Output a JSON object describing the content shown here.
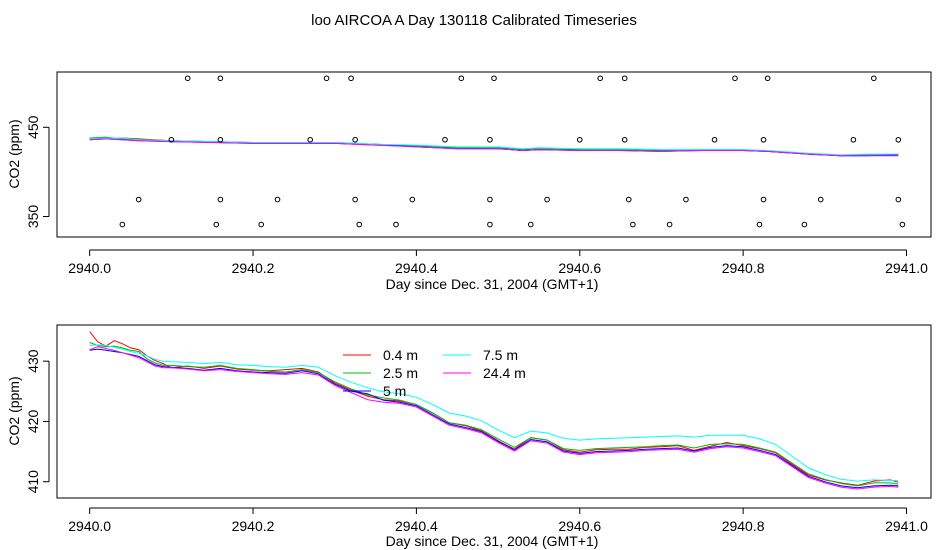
{
  "title": "loo AIRCOA A  Day 130118  Calibrated Timeseries",
  "chart_data": [
    {
      "type": "scatter",
      "xlabel": "Day since Dec. 31, 2004 (GMT+1)",
      "ylabel": "CO2 (ppm)",
      "xlim": [
        2939.96,
        2941.03
      ],
      "ylim": [
        327,
        512
      ],
      "xticks": [
        "2940.0",
        "2940.2",
        "2940.4",
        "2940.6",
        "2940.8",
        "2941.0"
      ],
      "xtick_values": [
        2940.0,
        2940.2,
        2940.4,
        2940.6,
        2940.8,
        2941.0
      ],
      "yticks": [
        "350",
        "450"
      ],
      "ytick_values": [
        350,
        450
      ],
      "grid": false,
      "line_colors": [
        "#ff0000",
        "#00bb00",
        "#0000ff",
        "#00ffff",
        "#ff00ff"
      ],
      "series": [
        {
          "values": [
            [
              2940.0,
              437
            ],
            [
              2940.02,
              438
            ],
            [
              2940.04,
              438
            ],
            [
              2940.06,
              437
            ],
            [
              2940.1,
              435
            ],
            [
              2940.2,
              433
            ],
            [
              2940.3,
              432
            ],
            [
              2940.35,
              430
            ],
            [
              2940.4,
              429
            ],
            [
              2940.45,
              427
            ],
            [
              2940.5,
              426
            ],
            [
              2940.53,
              424
            ],
            [
              2940.55,
              425
            ],
            [
              2940.6,
              425
            ],
            [
              2940.65,
              424
            ],
            [
              2940.7,
              424
            ],
            [
              2940.75,
              424
            ],
            [
              2940.8,
              424
            ],
            [
              2940.83,
              423
            ],
            [
              2940.88,
              420
            ],
            [
              2940.92,
              418
            ],
            [
              2940.95,
              419
            ],
            [
              2940.99,
              419
            ]
          ]
        },
        {
          "values": [
            [
              2940.0,
              438
            ],
            [
              2940.02,
              439
            ],
            [
              2940.04,
              437
            ],
            [
              2940.06,
              436
            ],
            [
              2940.1,
              435
            ],
            [
              2940.2,
              433
            ],
            [
              2940.3,
              433
            ],
            [
              2940.35,
              431
            ],
            [
              2940.4,
              429
            ],
            [
              2940.45,
              427
            ],
            [
              2940.5,
              427
            ],
            [
              2940.53,
              425
            ],
            [
              2940.55,
              426
            ],
            [
              2940.6,
              425
            ],
            [
              2940.65,
              425
            ],
            [
              2940.7,
              424
            ],
            [
              2940.75,
              425
            ],
            [
              2940.8,
              425
            ],
            [
              2940.83,
              423
            ],
            [
              2940.88,
              420
            ],
            [
              2940.92,
              418
            ],
            [
              2940.95,
              419
            ],
            [
              2940.99,
              419
            ]
          ]
        },
        {
          "values": [
            [
              2940.0,
              436
            ],
            [
              2940.02,
              437
            ],
            [
              2940.04,
              436
            ],
            [
              2940.06,
              435
            ],
            [
              2940.1,
              434
            ],
            [
              2940.2,
              432
            ],
            [
              2940.3,
              432
            ],
            [
              2940.35,
              431
            ],
            [
              2940.4,
              428
            ],
            [
              2940.45,
              426
            ],
            [
              2940.5,
              426
            ],
            [
              2940.53,
              424
            ],
            [
              2940.55,
              425
            ],
            [
              2940.6,
              424
            ],
            [
              2940.65,
              424
            ],
            [
              2940.7,
              423
            ],
            [
              2940.75,
              424
            ],
            [
              2940.8,
              424
            ],
            [
              2940.83,
              423
            ],
            [
              2940.88,
              420
            ],
            [
              2940.92,
              418
            ],
            [
              2940.95,
              418
            ],
            [
              2940.99,
              419
            ]
          ]
        },
        {
          "values": [
            [
              2940.0,
              437
            ],
            [
              2940.02,
              438
            ],
            [
              2940.04,
              438
            ],
            [
              2940.06,
              436
            ],
            [
              2940.1,
              435
            ],
            [
              2940.2,
              433
            ],
            [
              2940.3,
              433
            ],
            [
              2940.35,
              431
            ],
            [
              2940.4,
              430
            ],
            [
              2940.45,
              428
            ],
            [
              2940.5,
              428
            ],
            [
              2940.53,
              426
            ],
            [
              2940.55,
              427
            ],
            [
              2940.6,
              426
            ],
            [
              2940.65,
              426
            ],
            [
              2940.7,
              425
            ],
            [
              2940.75,
              425
            ],
            [
              2940.8,
              425
            ],
            [
              2940.83,
              424
            ],
            [
              2940.88,
              421
            ],
            [
              2940.92,
              419
            ],
            [
              2940.95,
              420
            ],
            [
              2940.99,
              420
            ]
          ]
        },
        {
          "values": [
            [
              2940.0,
              436
            ],
            [
              2940.02,
              437
            ],
            [
              2940.04,
              436
            ],
            [
              2940.06,
              435
            ],
            [
              2940.1,
              434
            ],
            [
              2940.2,
              432
            ],
            [
              2940.3,
              432
            ],
            [
              2940.35,
              430
            ],
            [
              2940.4,
              428
            ],
            [
              2940.45,
              426
            ],
            [
              2940.5,
              426
            ],
            [
              2940.53,
              424
            ],
            [
              2940.55,
              425
            ],
            [
              2940.6,
              424
            ],
            [
              2940.65,
              424
            ],
            [
              2940.7,
              423
            ],
            [
              2940.75,
              424
            ],
            [
              2940.8,
              424
            ],
            [
              2940.83,
              423
            ],
            [
              2940.88,
              420
            ],
            [
              2940.92,
              418
            ],
            [
              2940.95,
              418
            ],
            [
              2940.99,
              418
            ]
          ]
        }
      ],
      "points": [
        [
          2940.12,
          505
        ],
        [
          2940.16,
          505
        ],
        [
          2940.29,
          505
        ],
        [
          2940.32,
          505
        ],
        [
          2940.455,
          505
        ],
        [
          2940.495,
          505
        ],
        [
          2940.625,
          505
        ],
        [
          2940.655,
          505
        ],
        [
          2940.79,
          505
        ],
        [
          2940.83,
          505
        ],
        [
          2940.96,
          505
        ],
        [
          2940.1,
          436
        ],
        [
          2940.16,
          436
        ],
        [
          2940.27,
          436
        ],
        [
          2940.325,
          436
        ],
        [
          2940.435,
          436
        ],
        [
          2940.49,
          436
        ],
        [
          2940.6,
          436
        ],
        [
          2940.655,
          436
        ],
        [
          2940.765,
          436
        ],
        [
          2940.825,
          436
        ],
        [
          2940.935,
          436
        ],
        [
          2940.99,
          436
        ],
        [
          2940.06,
          369
        ],
        [
          2940.16,
          369
        ],
        [
          2940.23,
          369
        ],
        [
          2940.325,
          369
        ],
        [
          2940.395,
          369
        ],
        [
          2940.49,
          369
        ],
        [
          2940.56,
          369
        ],
        [
          2940.66,
          369
        ],
        [
          2940.73,
          369
        ],
        [
          2940.825,
          369
        ],
        [
          2940.895,
          369
        ],
        [
          2940.99,
          369
        ],
        [
          2940.04,
          341
        ],
        [
          2940.155,
          341
        ],
        [
          2940.21,
          341
        ],
        [
          2940.33,
          341
        ],
        [
          2940.375,
          341
        ],
        [
          2940.49,
          341
        ],
        [
          2940.54,
          341
        ],
        [
          2940.665,
          341
        ],
        [
          2940.71,
          341
        ],
        [
          2940.82,
          341
        ],
        [
          2940.875,
          341
        ],
        [
          2940.995,
          341
        ]
      ]
    },
    {
      "type": "line",
      "xlabel": "Day since Dec. 31, 2004 (GMT+1)",
      "ylabel": "CO2 (ppm)",
      "xlim": [
        2939.96,
        2941.03
      ],
      "ylim": [
        407.3,
        436.0
      ],
      "xticks": [
        "2940.0",
        "2940.2",
        "2940.4",
        "2940.6",
        "2940.8",
        "2941.0"
      ],
      "xtick_values": [
        2940.0,
        2940.2,
        2940.4,
        2940.6,
        2940.8,
        2941.0
      ],
      "yticks": [
        "410",
        "420",
        "430"
      ],
      "ytick_values": [
        410,
        420,
        430
      ],
      "grid": false,
      "legend_position": "top-center",
      "x": [
        2940.0,
        2940.01,
        2940.02,
        2940.03,
        2940.04,
        2940.05,
        2940.06,
        2940.07,
        2940.08,
        2940.09,
        2940.1,
        2940.12,
        2940.14,
        2940.16,
        2940.18,
        2940.2,
        2940.22,
        2940.24,
        2940.26,
        2940.28,
        2940.3,
        2940.32,
        2940.34,
        2940.36,
        2940.38,
        2940.4,
        2940.42,
        2940.44,
        2940.46,
        2940.48,
        2940.5,
        2940.52,
        2940.54,
        2940.56,
        2940.58,
        2940.6,
        2940.62,
        2940.64,
        2940.66,
        2940.68,
        2940.7,
        2940.72,
        2940.74,
        2940.76,
        2940.78,
        2940.8,
        2940.82,
        2940.84,
        2940.86,
        2940.88,
        2940.9,
        2940.92,
        2940.94,
        2940.96,
        2940.98,
        2940.99
      ],
      "series": [
        {
          "name": "0.4 m",
          "color": "#ff0000",
          "values": [
            434.9,
            433.2,
            432.5,
            433.4,
            432.9,
            432.2,
            431.9,
            430.9,
            430.1,
            429.6,
            428.9,
            429.2,
            428.8,
            429.2,
            428.7,
            428.5,
            428.4,
            428.6,
            428.8,
            428.2,
            426.4,
            425.2,
            424.2,
            423.6,
            423.4,
            422.8,
            421.4,
            419.8,
            419.3,
            418.4,
            416.8,
            415.4,
            417.3,
            416.9,
            415.3,
            414.9,
            415.3,
            415.4,
            415.4,
            415.7,
            415.8,
            416.0,
            415.2,
            415.9,
            416.5,
            416.0,
            415.5,
            414.8,
            412.9,
            411.1,
            410.3,
            409.8,
            409.4,
            410.1,
            410.3,
            409.9
          ]
        },
        {
          "name": "2.5 m",
          "color": "#00bb00",
          "values": [
            433.1,
            432.6,
            432.4,
            432.5,
            432.2,
            431.8,
            431.6,
            430.4,
            429.7,
            429.3,
            429.3,
            429.1,
            429.0,
            429.3,
            428.8,
            428.6,
            428.3,
            428.2,
            428.6,
            428.1,
            426.6,
            425.4,
            424.4,
            423.9,
            423.5,
            422.8,
            421.4,
            419.8,
            419.4,
            418.6,
            417.1,
            415.7,
            417.3,
            416.9,
            415.5,
            415.2,
            415.5,
            415.6,
            415.7,
            415.8,
            416.0,
            416.1,
            415.6,
            416.2,
            416.3,
            416.2,
            415.6,
            414.9,
            413.1,
            411.3,
            410.4,
            409.7,
            409.3,
            409.8,
            409.8,
            409.6
          ]
        },
        {
          "name": "5 m",
          "color": "#0000ff",
          "values": [
            431.8,
            432.0,
            431.8,
            431.6,
            431.4,
            431.1,
            430.8,
            430.1,
            429.4,
            429.1,
            429.0,
            428.8,
            428.5,
            428.8,
            428.4,
            428.2,
            428.1,
            428.0,
            428.4,
            427.9,
            426.2,
            425.0,
            424.6,
            423.5,
            423.2,
            422.6,
            421.1,
            419.6,
            419.0,
            418.3,
            416.7,
            415.3,
            417.0,
            416.6,
            415.1,
            414.7,
            415.0,
            415.1,
            415.2,
            415.4,
            415.5,
            415.6,
            415.1,
            415.7,
            416.0,
            415.8,
            415.2,
            414.5,
            412.7,
            410.9,
            410.0,
            409.3,
            409.0,
            409.3,
            409.4,
            409.3
          ]
        },
        {
          "name": "7.5 m",
          "color": "#00ffff",
          "values": [
            432.6,
            432.7,
            432.6,
            432.3,
            432.0,
            431.6,
            431.3,
            430.9,
            430.3,
            430.0,
            429.9,
            429.8,
            429.6,
            429.8,
            429.4,
            429.3,
            429.1,
            429.0,
            429.3,
            429.0,
            427.6,
            426.5,
            425.6,
            424.9,
            424.6,
            424.0,
            422.8,
            421.4,
            420.9,
            420.1,
            418.6,
            417.3,
            418.4,
            418.1,
            417.2,
            416.9,
            417.1,
            417.2,
            417.3,
            417.4,
            417.5,
            417.6,
            417.4,
            417.7,
            417.7,
            417.7,
            417.1,
            416.2,
            414.2,
            412.3,
            411.2,
            410.4,
            410.1,
            410.3,
            410.2,
            410.2
          ]
        },
        {
          "name": "24.4 m",
          "color": "#ff00ff",
          "values": [
            431.9,
            432.4,
            432.1,
            431.8,
            431.4,
            431.0,
            430.6,
            429.9,
            429.2,
            428.9,
            428.9,
            428.7,
            428.4,
            428.6,
            428.3,
            428.1,
            427.9,
            427.8,
            428.1,
            427.7,
            426.0,
            424.8,
            423.6,
            423.2,
            423.0,
            422.4,
            420.9,
            419.4,
            418.8,
            418.1,
            416.5,
            415.1,
            416.8,
            416.4,
            414.9,
            414.5,
            414.8,
            414.9,
            415.0,
            415.2,
            415.3,
            415.4,
            414.9,
            415.5,
            415.8,
            415.6,
            415.0,
            414.3,
            412.5,
            410.7,
            409.8,
            409.1,
            408.8,
            409.1,
            409.2,
            409.1
          ]
        }
      ]
    }
  ]
}
